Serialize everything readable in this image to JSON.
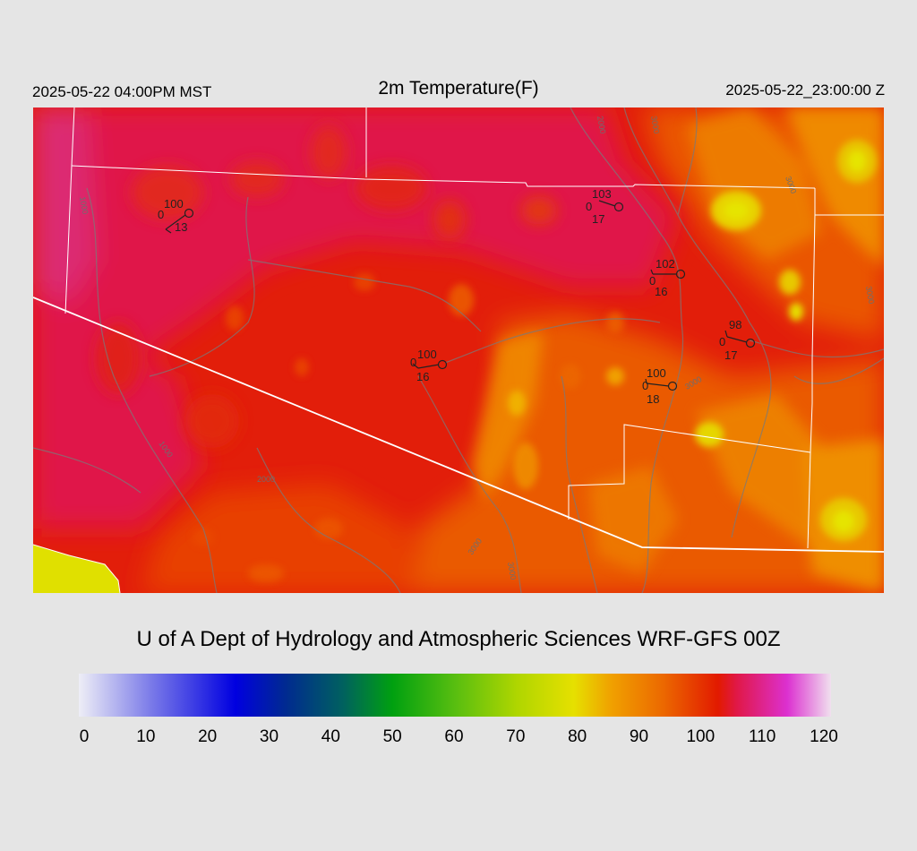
{
  "header": {
    "local_time": "2025-05-22 04:00PM MST",
    "title": "2m Temperature(F)",
    "utc_time": "2025-05-22_23:00:00 Z"
  },
  "credit": "U of A Dept of Hydrology and Atmospheric Sciences WRF-GFS 00Z",
  "colorbar": {
    "ticks": [
      "0",
      "10",
      "20",
      "30",
      "40",
      "50",
      "60",
      "70",
      "80",
      "90",
      "100",
      "110",
      "120"
    ],
    "stops": [
      {
        "value": 0,
        "color": "#eeeef6"
      },
      {
        "value": 12,
        "color": "#7676e8"
      },
      {
        "value": 25,
        "color": "#0000e0"
      },
      {
        "value": 33,
        "color": "#002a90"
      },
      {
        "value": 42,
        "color": "#006060"
      },
      {
        "value": 50,
        "color": "#00a010"
      },
      {
        "value": 60,
        "color": "#58be10"
      },
      {
        "value": 70,
        "color": "#b0d600"
      },
      {
        "value": 79,
        "color": "#e6e000"
      },
      {
        "value": 85,
        "color": "#f0a000"
      },
      {
        "value": 93,
        "color": "#ec6a00"
      },
      {
        "value": 102,
        "color": "#e21a00"
      },
      {
        "value": 105,
        "color": "#e01848"
      },
      {
        "value": 113,
        "color": "#dc30d0"
      },
      {
        "value": 120,
        "color": "#f0e0ee"
      }
    ]
  },
  "stations": [
    {
      "temp": "100",
      "dew": "13",
      "wind": "0"
    },
    {
      "temp": "103",
      "dew": "17",
      "wind": "0"
    },
    {
      "temp": "102",
      "dew": "16",
      "wind": "0"
    },
    {
      "temp": "98",
      "dew": "17",
      "wind": "0"
    },
    {
      "temp": "100",
      "dew": "16",
      "wind": "0"
    },
    {
      "temp": "100",
      "dew": "18",
      "wind": "0"
    }
  ],
  "elevation_labels": [
    "1000",
    "1000",
    "2000",
    "2000",
    "3000",
    "3000",
    "3000",
    "3000",
    "3000",
    "3000"
  ]
}
